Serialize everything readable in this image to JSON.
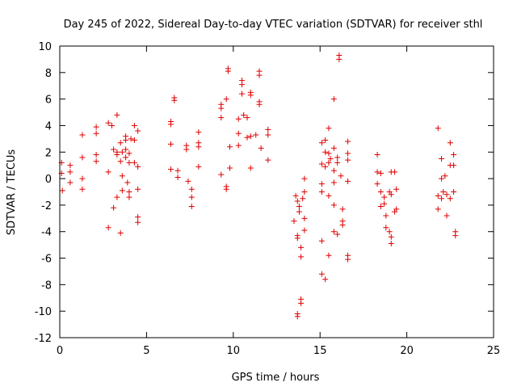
{
  "chart_data": {
    "type": "scatter",
    "title": "Day 245 of 2022, Sidereal Day-to-day VTEC variation (SDTVAR) for receiver sthl",
    "xlabel": "GPS time / hours",
    "ylabel": "SDTVAR / TECUs",
    "xlim": [
      0,
      25
    ],
    "ylim": [
      -12,
      10
    ],
    "xticks": [
      0,
      5,
      10,
      15,
      20,
      25
    ],
    "yticks": [
      -12,
      -10,
      -8,
      -6,
      -4,
      -2,
      0,
      2,
      4,
      6,
      8,
      10
    ],
    "marker": "+",
    "color": "#e00000",
    "grid": false,
    "series": [
      {
        "name": "SDTVAR",
        "points": [
          [
            0.1,
            1.2
          ],
          [
            0.1,
            0.4
          ],
          [
            0.15,
            -0.9
          ],
          [
            0.6,
            1.0
          ],
          [
            0.6,
            0.5
          ],
          [
            0.6,
            -0.3
          ],
          [
            1.3,
            3.3
          ],
          [
            1.3,
            1.6
          ],
          [
            1.3,
            0.0
          ],
          [
            1.3,
            -0.8
          ],
          [
            2.1,
            3.9
          ],
          [
            2.1,
            3.4
          ],
          [
            2.1,
            1.8
          ],
          [
            2.1,
            1.3
          ],
          [
            2.8,
            4.2
          ],
          [
            2.8,
            0.5
          ],
          [
            2.8,
            -3.7
          ],
          [
            3.0,
            4.0
          ],
          [
            3.1,
            2.2
          ],
          [
            3.1,
            -2.2
          ],
          [
            3.3,
            4.8
          ],
          [
            3.3,
            2.0
          ],
          [
            3.3,
            1.8
          ],
          [
            3.3,
            -1.4
          ],
          [
            3.5,
            2.7
          ],
          [
            3.5,
            1.3
          ],
          [
            3.5,
            -4.1
          ],
          [
            3.6,
            2.0
          ],
          [
            3.6,
            0.2
          ],
          [
            3.6,
            -0.9
          ],
          [
            3.8,
            3.2
          ],
          [
            3.8,
            2.9
          ],
          [
            3.8,
            2.2
          ],
          [
            3.8,
            1.6
          ],
          [
            3.9,
            -0.3
          ],
          [
            4.0,
            1.9
          ],
          [
            4.0,
            1.2
          ],
          [
            4.0,
            -1.0
          ],
          [
            4.0,
            -1.4
          ],
          [
            4.1,
            3.0
          ],
          [
            4.3,
            4.0
          ],
          [
            4.3,
            2.9
          ],
          [
            4.3,
            1.2
          ],
          [
            4.5,
            3.6
          ],
          [
            4.5,
            0.9
          ],
          [
            4.5,
            -0.8
          ],
          [
            4.5,
            -2.9
          ],
          [
            4.5,
            -3.3
          ],
          [
            6.4,
            4.3
          ],
          [
            6.4,
            4.1
          ],
          [
            6.4,
            2.6
          ],
          [
            6.4,
            0.7
          ],
          [
            6.6,
            6.1
          ],
          [
            6.6,
            5.9
          ],
          [
            6.8,
            0.6
          ],
          [
            6.8,
            0.1
          ],
          [
            7.3,
            2.5
          ],
          [
            7.3,
            2.2
          ],
          [
            7.4,
            -0.2
          ],
          [
            7.6,
            -0.8
          ],
          [
            7.6,
            -1.4
          ],
          [
            7.6,
            -2.1
          ],
          [
            8.0,
            3.5
          ],
          [
            8.0,
            2.7
          ],
          [
            8.0,
            2.4
          ],
          [
            8.0,
            0.9
          ],
          [
            9.3,
            5.6
          ],
          [
            9.3,
            5.3
          ],
          [
            9.3,
            4.6
          ],
          [
            9.3,
            0.3
          ],
          [
            9.6,
            6.0
          ],
          [
            9.6,
            -0.6
          ],
          [
            9.6,
            -0.8
          ],
          [
            9.7,
            8.3
          ],
          [
            9.7,
            8.1
          ],
          [
            9.8,
            2.4
          ],
          [
            9.8,
            0.8
          ],
          [
            10.3,
            4.5
          ],
          [
            10.3,
            3.4
          ],
          [
            10.3,
            2.5
          ],
          [
            10.5,
            7.4
          ],
          [
            10.5,
            7.1
          ],
          [
            10.5,
            6.4
          ],
          [
            10.6,
            4.8
          ],
          [
            10.8,
            4.6
          ],
          [
            10.8,
            3.1
          ],
          [
            11.0,
            6.5
          ],
          [
            11.0,
            6.3
          ],
          [
            11.0,
            3.2
          ],
          [
            11.0,
            0.8
          ],
          [
            11.3,
            3.3
          ],
          [
            11.5,
            8.1
          ],
          [
            11.5,
            7.8
          ],
          [
            11.5,
            5.8
          ],
          [
            11.5,
            5.6
          ],
          [
            11.6,
            2.3
          ],
          [
            12.0,
            3.7
          ],
          [
            12.0,
            3.3
          ],
          [
            12.0,
            1.4
          ],
          [
            13.5,
            -3.2
          ],
          [
            13.6,
            -1.3
          ],
          [
            13.7,
            -1.7
          ],
          [
            13.7,
            -4.3
          ],
          [
            13.7,
            -4.5
          ],
          [
            13.7,
            -10.2
          ],
          [
            13.7,
            -10.4
          ],
          [
            13.8,
            -2.1
          ],
          [
            13.8,
            -2.5
          ],
          [
            13.9,
            -5.2
          ],
          [
            13.9,
            -5.9
          ],
          [
            13.9,
            -9.1
          ],
          [
            13.9,
            -9.4
          ],
          [
            14.0,
            -1.5
          ],
          [
            14.1,
            -1.0
          ],
          [
            14.1,
            -3.0
          ],
          [
            14.1,
            -3.9
          ],
          [
            14.1,
            0.0
          ],
          [
            15.1,
            2.7
          ],
          [
            15.1,
            1.1
          ],
          [
            15.1,
            -0.4
          ],
          [
            15.1,
            -1.0
          ],
          [
            15.1,
            -4.7
          ],
          [
            15.1,
            -7.2
          ],
          [
            15.3,
            2.9
          ],
          [
            15.3,
            2.0
          ],
          [
            15.3,
            0.9
          ],
          [
            15.3,
            -7.6
          ],
          [
            15.5,
            3.8
          ],
          [
            15.5,
            1.9
          ],
          [
            15.5,
            1.2
          ],
          [
            15.5,
            -1.3
          ],
          [
            15.5,
            -5.8
          ],
          [
            15.6,
            1.5
          ],
          [
            15.8,
            6.0
          ],
          [
            15.8,
            2.3
          ],
          [
            15.8,
            0.6
          ],
          [
            15.8,
            -0.3
          ],
          [
            15.8,
            -2.0
          ],
          [
            15.8,
            -4.0
          ],
          [
            16.0,
            1.6
          ],
          [
            16.0,
            1.2
          ],
          [
            16.0,
            -4.2
          ],
          [
            16.1,
            9.3
          ],
          [
            16.1,
            9.0
          ],
          [
            16.2,
            0.2
          ],
          [
            16.3,
            -2.3
          ],
          [
            16.3,
            -3.2
          ],
          [
            16.3,
            -3.5
          ],
          [
            16.6,
            2.8
          ],
          [
            16.6,
            1.9
          ],
          [
            16.6,
            1.4
          ],
          [
            16.6,
            -0.2
          ],
          [
            16.6,
            -5.8
          ],
          [
            16.6,
            -6.1
          ],
          [
            18.3,
            1.8
          ],
          [
            18.3,
            0.5
          ],
          [
            18.3,
            -0.4
          ],
          [
            18.5,
            0.4
          ],
          [
            18.5,
            -1.0
          ],
          [
            18.5,
            -2.1
          ],
          [
            18.7,
            -1.4
          ],
          [
            18.7,
            -1.9
          ],
          [
            18.8,
            -2.8
          ],
          [
            18.8,
            -3.7
          ],
          [
            19.0,
            -4.0
          ],
          [
            19.0,
            -1.0
          ],
          [
            19.1,
            0.5
          ],
          [
            19.1,
            -1.2
          ],
          [
            19.1,
            -4.4
          ],
          [
            19.1,
            -4.9
          ],
          [
            19.3,
            0.5
          ],
          [
            19.3,
            -2.5
          ],
          [
            19.4,
            -0.8
          ],
          [
            19.4,
            -2.3
          ],
          [
            21.8,
            3.8
          ],
          [
            21.8,
            -1.3
          ],
          [
            21.8,
            -2.3
          ],
          [
            22.0,
            1.5
          ],
          [
            22.0,
            0.0
          ],
          [
            22.0,
            -1.5
          ],
          [
            22.1,
            -1.0
          ],
          [
            22.2,
            0.2
          ],
          [
            22.3,
            -1.2
          ],
          [
            22.3,
            -2.8
          ],
          [
            22.5,
            2.7
          ],
          [
            22.5,
            1.0
          ],
          [
            22.5,
            -1.5
          ],
          [
            22.7,
            1.8
          ],
          [
            22.7,
            1.0
          ],
          [
            22.7,
            -1.0
          ],
          [
            22.8,
            -4.0
          ],
          [
            22.8,
            -4.3
          ]
        ]
      }
    ]
  }
}
